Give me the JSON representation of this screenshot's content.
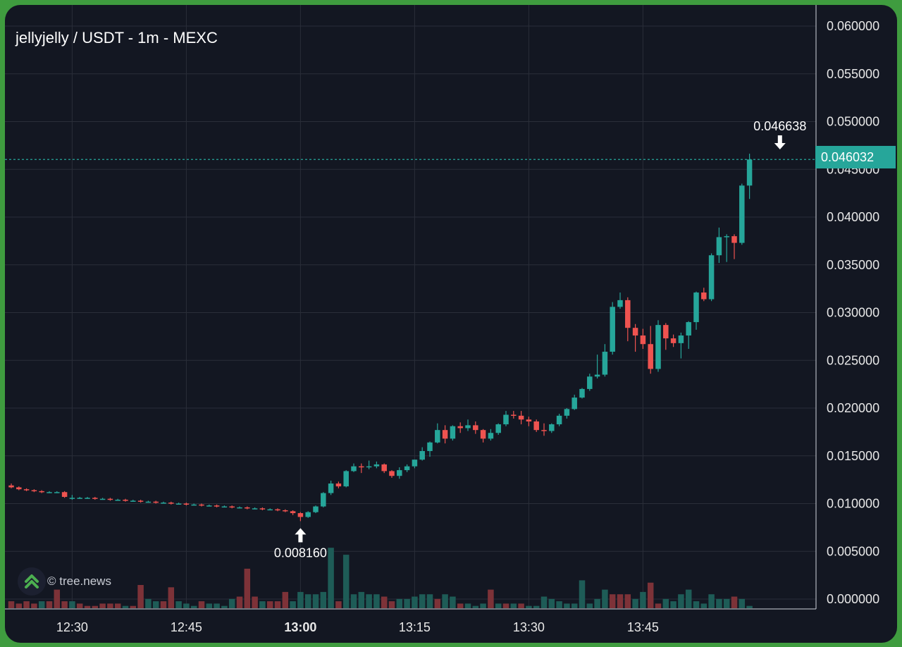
{
  "title": "jellyjelly / USDT - 1m - MEXC",
  "credit": "© tree.news",
  "colors": {
    "up": "#26a69a",
    "down": "#ef5350",
    "up_volume": "#1e5c57",
    "down_volume": "#7d3238",
    "background": "#131722",
    "frame": "#3f9c3f",
    "grid": "#2a2e39"
  },
  "chart_data": {
    "type": "candlestick",
    "title": "jellyjelly / USDT - 1m - MEXC",
    "last_price": "0.046032",
    "annotations": [
      {
        "label": "0.046638",
        "marker": "arrow-down",
        "time_index": 101,
        "price": 0.046638
      },
      {
        "label": "0.008160",
        "marker": "arrow-up",
        "time_index": 38,
        "price": 0.00816
      }
    ],
    "y_ticks": [
      "0.060000",
      "0.055000",
      "0.050000",
      "0.045000",
      "0.040000",
      "0.035000",
      "0.030000",
      "0.025000",
      "0.020000",
      "0.015000",
      "0.010000",
      "0.005000",
      "0.000000"
    ],
    "y_tick_values": [
      0.06,
      0.055,
      0.05,
      0.045,
      0.04,
      0.035,
      0.03,
      0.025,
      0.02,
      0.015,
      0.01,
      0.005,
      0.0
    ],
    "x_ticks": [
      {
        "label": "12:30",
        "index": 8,
        "bold": false
      },
      {
        "label": "12:45",
        "index": 23,
        "bold": false
      },
      {
        "label": "13:00",
        "index": 38,
        "bold": true
      },
      {
        "label": "13:15",
        "index": 53,
        "bold": false
      },
      {
        "label": "13:30",
        "index": 68,
        "bold": false
      },
      {
        "label": "13:45",
        "index": 83,
        "bold": false
      }
    ],
    "candles": [
      [
        0.0119,
        0.0121,
        0.0117,
        0.0116
      ],
      [
        0.0117,
        0.0118,
        0.0115,
        0.0114
      ],
      [
        0.0115,
        0.0116,
        0.0114,
        0.0113
      ],
      [
        0.0114,
        0.0115,
        0.0113,
        0.0112
      ],
      [
        0.0113,
        0.0114,
        0.0112,
        0.0111
      ],
      [
        0.0112,
        0.0113,
        0.0112,
        0.0111
      ],
      [
        0.0112,
        0.0113,
        0.0112,
        0.0111
      ],
      [
        0.0112,
        0.0113,
        0.0107,
        0.0106
      ],
      [
        0.0106,
        0.0109,
        0.0106,
        0.0104
      ],
      [
        0.0106,
        0.0107,
        0.0106,
        0.0105
      ],
      [
        0.0106,
        0.0107,
        0.0106,
        0.0105
      ],
      [
        0.0106,
        0.0107,
        0.0105,
        0.0104
      ],
      [
        0.0105,
        0.0106,
        0.0105,
        0.0104
      ],
      [
        0.0105,
        0.0106,
        0.0104,
        0.0103
      ],
      [
        0.0104,
        0.0105,
        0.0104,
        0.0103
      ],
      [
        0.0104,
        0.0105,
        0.0103,
        0.0102
      ],
      [
        0.0103,
        0.0104,
        0.0103,
        0.0102
      ],
      [
        0.0103,
        0.0104,
        0.0102,
        0.0101
      ],
      [
        0.0102,
        0.0103,
        0.0102,
        0.0101
      ],
      [
        0.0102,
        0.0103,
        0.0101,
        0.01
      ],
      [
        0.0101,
        0.0102,
        0.0101,
        0.01
      ],
      [
        0.0101,
        0.0102,
        0.01,
        0.0099
      ],
      [
        0.01,
        0.0101,
        0.01,
        0.0099
      ],
      [
        0.01,
        0.0101,
        0.0099,
        0.0098
      ],
      [
        0.0099,
        0.01,
        0.0099,
        0.0098
      ],
      [
        0.0099,
        0.01,
        0.0098,
        0.0097
      ],
      [
        0.0098,
        0.0099,
        0.0098,
        0.0097
      ],
      [
        0.0098,
        0.0099,
        0.0097,
        0.0096
      ],
      [
        0.0097,
        0.0098,
        0.0097,
        0.0096
      ],
      [
        0.0097,
        0.0098,
        0.0096,
        0.0095
      ],
      [
        0.0096,
        0.0097,
        0.0096,
        0.0095
      ],
      [
        0.0096,
        0.0097,
        0.0095,
        0.0094
      ],
      [
        0.0095,
        0.0096,
        0.0095,
        0.0094
      ],
      [
        0.0095,
        0.0096,
        0.0094,
        0.0093
      ],
      [
        0.0094,
        0.0095,
        0.0094,
        0.0093
      ],
      [
        0.0094,
        0.0095,
        0.0093,
        0.0092
      ],
      [
        0.0093,
        0.0094,
        0.0092,
        0.0091
      ],
      [
        0.0092,
        0.0093,
        0.009,
        0.0088
      ],
      [
        0.009,
        0.0091,
        0.0086,
        0.00816
      ],
      [
        0.0086,
        0.0092,
        0.0091,
        0.0085
      ],
      [
        0.0091,
        0.0098,
        0.0097,
        0.009
      ],
      [
        0.0097,
        0.0112,
        0.0111,
        0.0096
      ],
      [
        0.0111,
        0.0124,
        0.0121,
        0.0109
      ],
      [
        0.0121,
        0.0123,
        0.0118,
        0.0116
      ],
      [
        0.0118,
        0.0135,
        0.0134,
        0.0117
      ],
      [
        0.0134,
        0.0142,
        0.0139,
        0.0133
      ],
      [
        0.0139,
        0.0142,
        0.0138,
        0.0132
      ],
      [
        0.0138,
        0.0145,
        0.0139,
        0.0136
      ],
      [
        0.0139,
        0.0144,
        0.0141,
        0.0137
      ],
      [
        0.0141,
        0.0142,
        0.0134,
        0.0132
      ],
      [
        0.0134,
        0.0135,
        0.0129,
        0.0127
      ],
      [
        0.0129,
        0.0138,
        0.0135,
        0.0126
      ],
      [
        0.0135,
        0.0141,
        0.0139,
        0.0133
      ],
      [
        0.0139,
        0.0146,
        0.0146,
        0.0137
      ],
      [
        0.0146,
        0.0159,
        0.0155,
        0.0145
      ],
      [
        0.0155,
        0.0165,
        0.0164,
        0.0149
      ],
      [
        0.0164,
        0.0184,
        0.0177,
        0.0163
      ],
      [
        0.0177,
        0.0182,
        0.0168,
        0.0163
      ],
      [
        0.0168,
        0.0182,
        0.0181,
        0.0166
      ],
      [
        0.0181,
        0.0185,
        0.0179,
        0.0174
      ],
      [
        0.0179,
        0.0188,
        0.0182,
        0.0176
      ],
      [
        0.0182,
        0.0186,
        0.0177,
        0.0173
      ],
      [
        0.0177,
        0.0178,
        0.0168,
        0.0164
      ],
      [
        0.0168,
        0.0178,
        0.0174,
        0.0166
      ],
      [
        0.0174,
        0.0184,
        0.0183,
        0.0172
      ],
      [
        0.0183,
        0.0197,
        0.0193,
        0.0181
      ],
      [
        0.0193,
        0.0197,
        0.0192,
        0.0189
      ],
      [
        0.0192,
        0.0197,
        0.0188,
        0.0183
      ],
      [
        0.0188,
        0.0191,
        0.0186,
        0.0181
      ],
      [
        0.0186,
        0.0188,
        0.0177,
        0.0175
      ],
      [
        0.0177,
        0.0184,
        0.0176,
        0.0171
      ],
      [
        0.0176,
        0.0184,
        0.0183,
        0.0174
      ],
      [
        0.0183,
        0.0194,
        0.0192,
        0.0181
      ],
      [
        0.0192,
        0.02,
        0.0199,
        0.0189
      ],
      [
        0.0199,
        0.0214,
        0.0211,
        0.0198
      ],
      [
        0.0211,
        0.0221,
        0.022,
        0.021
      ],
      [
        0.022,
        0.0236,
        0.0233,
        0.0218
      ],
      [
        0.0233,
        0.0256,
        0.0235,
        0.0231
      ],
      [
        0.0235,
        0.0267,
        0.0259,
        0.0233
      ],
      [
        0.0259,
        0.0311,
        0.0306,
        0.0256
      ],
      [
        0.0306,
        0.0321,
        0.0313,
        0.0304
      ],
      [
        0.0313,
        0.0316,
        0.0284,
        0.027
      ],
      [
        0.0284,
        0.0288,
        0.0276,
        0.0259
      ],
      [
        0.0276,
        0.0283,
        0.0267,
        0.0262
      ],
      [
        0.0267,
        0.0286,
        0.0241,
        0.0236
      ],
      [
        0.0241,
        0.0292,
        0.0287,
        0.0238
      ],
      [
        0.0287,
        0.0289,
        0.0273,
        0.0261
      ],
      [
        0.0273,
        0.0277,
        0.0268,
        0.0264
      ],
      [
        0.0268,
        0.0279,
        0.0276,
        0.0252
      ],
      [
        0.0276,
        0.0291,
        0.029,
        0.0262
      ],
      [
        0.029,
        0.0322,
        0.0321,
        0.0282
      ],
      [
        0.0321,
        0.0326,
        0.0314,
        0.0312
      ],
      [
        0.0314,
        0.0362,
        0.036,
        0.0312
      ],
      [
        0.036,
        0.0389,
        0.0379,
        0.0352
      ],
      [
        0.0379,
        0.0382,
        0.038,
        0.0353
      ],
      [
        0.038,
        0.0382,
        0.0373,
        0.0356
      ],
      [
        0.0373,
        0.0435,
        0.0433,
        0.0371
      ],
      [
        0.0433,
        0.046638,
        0.046032,
        0.0419
      ]
    ],
    "volumes": [
      [
        3,
        "down"
      ],
      [
        2,
        "down"
      ],
      [
        3,
        "down"
      ],
      [
        2,
        "down"
      ],
      [
        3,
        "up"
      ],
      [
        3,
        "down"
      ],
      [
        8,
        "down"
      ],
      [
        3,
        "down"
      ],
      [
        3,
        "up"
      ],
      [
        2,
        "down"
      ],
      [
        1,
        "down"
      ],
      [
        1,
        "down"
      ],
      [
        2,
        "down"
      ],
      [
        2,
        "down"
      ],
      [
        2,
        "down"
      ],
      [
        1,
        "up"
      ],
      [
        1,
        "down"
      ],
      [
        10,
        "down"
      ],
      [
        4,
        "up"
      ],
      [
        3,
        "up"
      ],
      [
        3,
        "down"
      ],
      [
        9,
        "down"
      ],
      [
        3,
        "up"
      ],
      [
        2,
        "up"
      ],
      [
        1,
        "up"
      ],
      [
        3,
        "down"
      ],
      [
        2,
        "up"
      ],
      [
        2,
        "up"
      ],
      [
        1,
        "up"
      ],
      [
        4,
        "up"
      ],
      [
        5,
        "down"
      ],
      [
        17,
        "down"
      ],
      [
        5,
        "down"
      ],
      [
        3,
        "up"
      ],
      [
        3,
        "down"
      ],
      [
        3,
        "down"
      ],
      [
        7,
        "down"
      ],
      [
        3,
        "up"
      ],
      [
        7,
        "up"
      ],
      [
        6,
        "up"
      ],
      [
        6,
        "up"
      ],
      [
        7,
        "up"
      ],
      [
        26,
        "up"
      ],
      [
        3,
        "down"
      ],
      [
        23,
        "up"
      ],
      [
        6,
        "up"
      ],
      [
        7,
        "up"
      ],
      [
        6,
        "up"
      ],
      [
        6,
        "up"
      ],
      [
        5,
        "down"
      ],
      [
        3,
        "down"
      ],
      [
        4,
        "up"
      ],
      [
        4,
        "up"
      ],
      [
        5,
        "up"
      ],
      [
        6,
        "up"
      ],
      [
        6,
        "up"
      ],
      [
        4,
        "down"
      ],
      [
        6,
        "up"
      ],
      [
        5,
        "up"
      ],
      [
        2,
        "down"
      ],
      [
        2,
        "up"
      ],
      [
        1,
        "up"
      ],
      [
        2,
        "up"
      ],
      [
        8,
        "down"
      ],
      [
        2,
        "up"
      ],
      [
        2,
        "down"
      ],
      [
        2,
        "up"
      ],
      [
        2,
        "down"
      ],
      [
        1,
        "up"
      ],
      [
        1,
        "up"
      ],
      [
        5,
        "up"
      ],
      [
        4,
        "up"
      ],
      [
        3,
        "up"
      ],
      [
        2,
        "up"
      ],
      [
        2,
        "up"
      ],
      [
        12,
        "up"
      ],
      [
        2,
        "up"
      ],
      [
        4,
        "up"
      ],
      [
        8,
        "up"
      ],
      [
        6,
        "down"
      ],
      [
        6,
        "down"
      ],
      [
        6,
        "down"
      ],
      [
        4,
        "up"
      ],
      [
        7,
        "up"
      ],
      [
        11,
        "down"
      ],
      [
        2,
        "down"
      ],
      [
        4,
        "up"
      ],
      [
        3,
        "up"
      ],
      [
        6,
        "up"
      ],
      [
        8,
        "up"
      ],
      [
        3,
        "up"
      ],
      [
        2,
        "up"
      ],
      [
        6,
        "up"
      ],
      [
        4,
        "up"
      ],
      [
        4,
        "up"
      ],
      [
        5,
        "down"
      ],
      [
        4,
        "up"
      ],
      [
        1,
        "up"
      ]
    ]
  }
}
